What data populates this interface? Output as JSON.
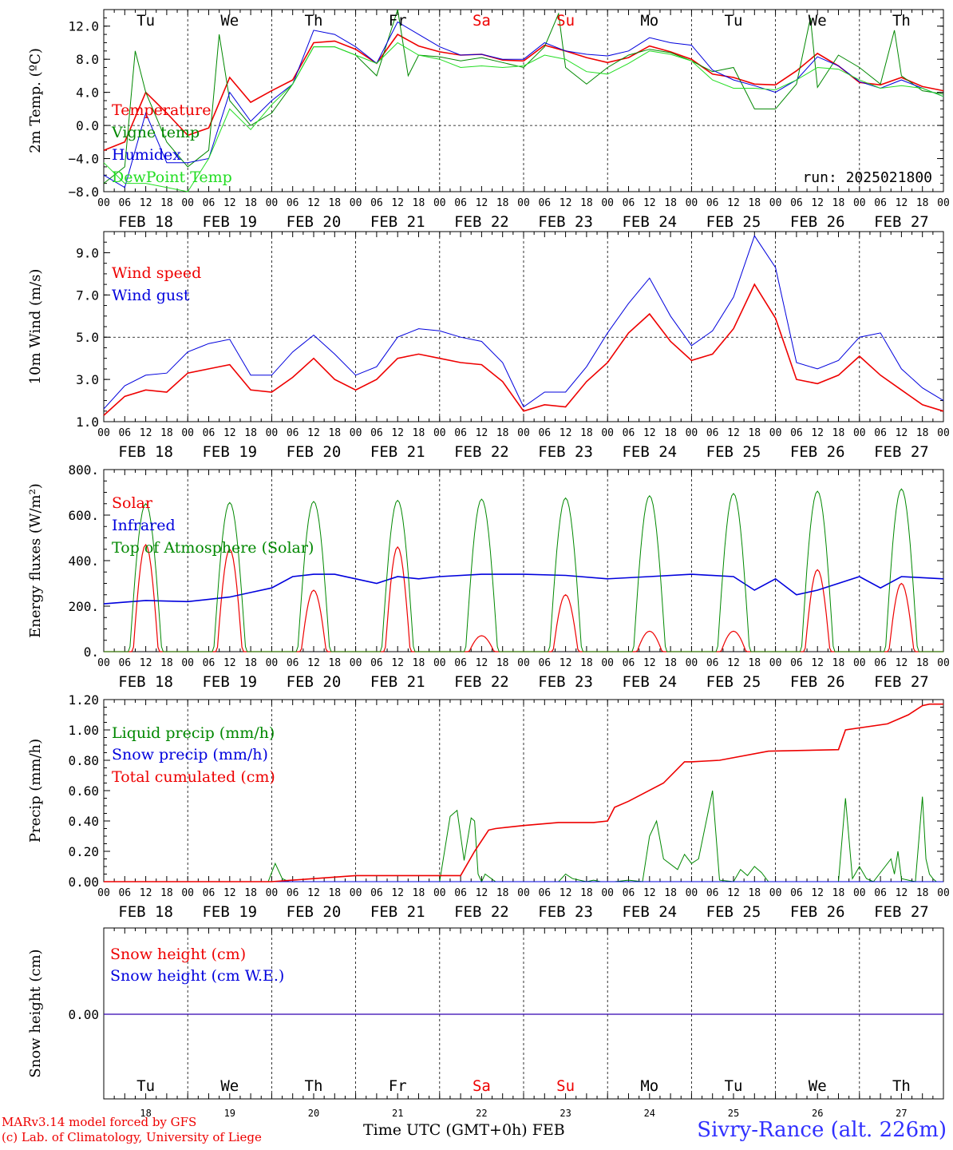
{
  "meta": {
    "run_label": "run: 2025021800",
    "station": "Sivry-Rance (alt. 226m)",
    "credit_line1": "MARv3.14 model forced by GFS",
    "credit_line2": "(c) Lab. of Climatology, University of Liege",
    "time_axis_label": "Time UTC (GMT+0h) FEB"
  },
  "days": {
    "dates": [
      "FEB 18",
      "FEB 19",
      "FEB 20",
      "FEB 21",
      "FEB 22",
      "FEB 23",
      "FEB 24",
      "FEB 25",
      "FEB 26",
      "FEB 27"
    ],
    "weekdays": [
      "Tu",
      "We",
      "Th",
      "Fr",
      "Sa",
      "Su",
      "Mo",
      "Tu",
      "We",
      "Th"
    ],
    "weekday_colors": [
      "#000000",
      "#000000",
      "#000000",
      "#000000",
      "#ee0000",
      "#ee0000",
      "#000000",
      "#000000",
      "#000000",
      "#000000"
    ],
    "day_numbers": [
      "18",
      "19",
      "20",
      "21",
      "22",
      "23",
      "24",
      "25",
      "26",
      "27"
    ],
    "hour_labels": [
      "00",
      "06",
      "12",
      "18"
    ],
    "final_hour_label": "00"
  },
  "chart_data": [
    {
      "type": "line",
      "ylabel": "2m Temp. (ºC)",
      "ylim": [
        -8,
        14
      ],
      "yticks": [
        -8,
        -4,
        0,
        4,
        8,
        12
      ],
      "ytick_labels": [
        "−8.0",
        "−4.0",
        "0.0",
        "4.0",
        "8.0",
        "12.0"
      ],
      "x_unit": "hours since FEB 18 00 UTC",
      "dashed_y": 0,
      "legend": "top-left",
      "series": [
        {
          "name": "Temperature",
          "color": "#ee0000",
          "width": 1.6,
          "x": [
            0,
            6,
            12,
            18,
            24,
            30,
            36,
            42,
            48,
            54,
            60,
            66,
            72,
            78,
            84,
            90,
            96,
            102,
            108,
            114,
            120,
            126,
            132,
            138,
            144,
            150,
            156,
            162,
            168,
            174,
            180,
            186,
            192,
            198,
            204,
            210,
            216,
            222,
            228,
            234,
            240
          ],
          "y": [
            -3,
            -2,
            4,
            1.5,
            -1.2,
            -0.3,
            5.8,
            2.8,
            4.2,
            5.5,
            10,
            10.2,
            9.2,
            7.5,
            11,
            9.6,
            8.9,
            8.5,
            8.6,
            7.9,
            7.8,
            9.7,
            9,
            8.2,
            7.6,
            8.2,
            9.6,
            8.9,
            8,
            6.2,
            5.8,
            5,
            4.9,
            6.6,
            8.7,
            7.2,
            5.2,
            4.9,
            5.8,
            4.7,
            4.2
          ]
        },
        {
          "name": "Vigne temp",
          "color": "#008800",
          "width": 1,
          "x": [
            0,
            6,
            9,
            12,
            18,
            24,
            30,
            33,
            36,
            42,
            48,
            54,
            60,
            66,
            72,
            78,
            84,
            87,
            90,
            96,
            102,
            108,
            114,
            120,
            126,
            130,
            132,
            138,
            144,
            150,
            156,
            162,
            168,
            174,
            180,
            186,
            192,
            198,
            202,
            204,
            210,
            216,
            222,
            226,
            228,
            234,
            240
          ],
          "y": [
            -7,
            -5,
            9,
            4,
            -2,
            -5,
            -3,
            11,
            3,
            0,
            1.5,
            5,
            9.5,
            9.5,
            8.5,
            6,
            14,
            6,
            8.5,
            8.3,
            7.8,
            8.2,
            7.6,
            7,
            9.5,
            13.5,
            7,
            5,
            7,
            8.5,
            9.2,
            8.8,
            7.8,
            6.5,
            7,
            2,
            2,
            5,
            13,
            4.6,
            8.5,
            7,
            5,
            11.5,
            6,
            4.2,
            3.8
          ]
        },
        {
          "name": "Humidex",
          "color": "#0000dd",
          "width": 1,
          "x": [
            0,
            6,
            12,
            18,
            24,
            30,
            36,
            42,
            48,
            54,
            60,
            66,
            72,
            78,
            84,
            90,
            96,
            102,
            108,
            114,
            120,
            126,
            132,
            138,
            144,
            150,
            156,
            162,
            168,
            174,
            180,
            186,
            192,
            198,
            204,
            210,
            216,
            222,
            228,
            234,
            240
          ],
          "y": [
            -6,
            -7.5,
            1.5,
            -4.5,
            -4.5,
            -4,
            4,
            0.5,
            3,
            5,
            11.5,
            11,
            9.5,
            7.5,
            12.5,
            11,
            9.5,
            8.5,
            8.6,
            8,
            8,
            10,
            9,
            8.6,
            8.4,
            9,
            10.6,
            10,
            9.7,
            6.7,
            5.5,
            4.8,
            4,
            5.5,
            8.3,
            7.2,
            5.3,
            4.5,
            5.5,
            4.5,
            3.5
          ]
        },
        {
          "name": "DewPoint Temp",
          "color": "#22dd22",
          "width": 1,
          "x": [
            0,
            6,
            12,
            18,
            24,
            30,
            36,
            42,
            48,
            54,
            60,
            66,
            72,
            78,
            84,
            90,
            96,
            102,
            108,
            114,
            120,
            126,
            132,
            138,
            144,
            150,
            156,
            162,
            168,
            174,
            180,
            186,
            192,
            198,
            204,
            210,
            216,
            222,
            228,
            234,
            240
          ],
          "y": [
            -4.5,
            -7,
            -7,
            -7.5,
            -8,
            -4,
            2,
            -0.5,
            2.5,
            5,
            9.5,
            9.5,
            8.5,
            7.5,
            10,
            8.5,
            8,
            7,
            7.2,
            7,
            7.2,
            8.5,
            8,
            6.5,
            6.2,
            7.5,
            9,
            8.6,
            7.8,
            5.5,
            4.5,
            4.5,
            4.3,
            5.5,
            7,
            6.8,
            5.5,
            4.5,
            4.8,
            4.5,
            3.5
          ]
        }
      ]
    },
    {
      "type": "line",
      "ylabel": "10m Wind (m/s)",
      "ylim": [
        1,
        10
      ],
      "yticks": [
        1,
        3,
        5,
        7,
        9
      ],
      "ytick_labels": [
        "1.0",
        "3.0",
        "5.0",
        "7.0",
        "9.0"
      ],
      "x_unit": "hours since FEB 18 00 UTC",
      "dashed_y": 5,
      "legend": "top-left",
      "series": [
        {
          "name": "Wind speed",
          "color": "#ee0000",
          "width": 1.6,
          "x": [
            0,
            6,
            12,
            18,
            24,
            30,
            36,
            42,
            48,
            54,
            60,
            66,
            72,
            78,
            84,
            90,
            96,
            102,
            108,
            114,
            120,
            126,
            132,
            138,
            144,
            150,
            156,
            162,
            168,
            174,
            180,
            186,
            192,
            198,
            204,
            210,
            216,
            222,
            228,
            234,
            240
          ],
          "y": [
            1.3,
            2.2,
            2.5,
            2.4,
            3.3,
            3.5,
            3.7,
            2.5,
            2.4,
            3.1,
            4,
            3,
            2.5,
            3,
            4,
            4.2,
            4,
            3.8,
            3.7,
            2.9,
            1.5,
            1.8,
            1.7,
            2.9,
            3.8,
            5.2,
            6.1,
            4.8,
            3.9,
            4.2,
            5.4,
            7.5,
            5.9,
            3,
            2.8,
            3.2,
            4.1,
            3.2,
            2.5,
            1.8,
            1.5
          ]
        },
        {
          "name": "Wind gust",
          "color": "#0000dd",
          "width": 1,
          "x": [
            0,
            6,
            12,
            18,
            24,
            30,
            36,
            42,
            48,
            54,
            60,
            66,
            72,
            78,
            84,
            90,
            96,
            102,
            108,
            114,
            120,
            126,
            132,
            138,
            144,
            150,
            156,
            162,
            168,
            174,
            180,
            186,
            192,
            198,
            204,
            210,
            216,
            222,
            228,
            234,
            240
          ],
          "y": [
            1.6,
            2.7,
            3.2,
            3.3,
            4.3,
            4.7,
            4.9,
            3.2,
            3.2,
            4.3,
            5.1,
            4.2,
            3.2,
            3.6,
            5,
            5.4,
            5.3,
            5,
            4.8,
            3.8,
            1.7,
            2.4,
            2.4,
            3.6,
            5.2,
            6.6,
            7.8,
            6,
            4.6,
            5.3,
            6.9,
            9.8,
            8.3,
            3.8,
            3.5,
            3.9,
            5,
            5.2,
            3.5,
            2.6,
            2
          ]
        }
      ]
    },
    {
      "type": "line",
      "ylabel": "Energy fluxes (W/m²)",
      "ylim": [
        0,
        800
      ],
      "yticks": [
        0,
        200,
        400,
        600,
        800
      ],
      "ytick_labels": [
        "0.",
        "200.",
        "400.",
        "600.",
        "800."
      ],
      "x_unit": "hours since FEB 18 00 UTC",
      "legend": "top-left",
      "series": [
        {
          "name": "Solar",
          "color": "#ee0000",
          "width": 1.2,
          "day_peaks": [
            470,
            450,
            270,
            460,
            70,
            250,
            90,
            90,
            360,
            300
          ]
        },
        {
          "name": "Infrared",
          "color": "#0000dd",
          "width": 1.6,
          "x": [
            0,
            12,
            24,
            36,
            42,
            48,
            54,
            60,
            66,
            72,
            78,
            84,
            90,
            96,
            108,
            120,
            132,
            144,
            156,
            168,
            180,
            186,
            192,
            198,
            204,
            216,
            222,
            228,
            240
          ],
          "y": [
            210,
            225,
            220,
            240,
            260,
            280,
            330,
            340,
            340,
            320,
            300,
            330,
            320,
            330,
            340,
            340,
            335,
            320,
            330,
            340,
            330,
            270,
            320,
            250,
            270,
            330,
            280,
            330,
            320
          ]
        },
        {
          "name": "Top of Atmosphere (Solar)",
          "color": "#008800",
          "width": 1,
          "day_peaks": [
            650,
            655,
            660,
            665,
            670,
            675,
            685,
            695,
            705,
            715
          ]
        }
      ]
    },
    {
      "type": "line",
      "ylabel": "Precip (mm/h)",
      "ylim": [
        0,
        1.2
      ],
      "yticks": [
        0,
        0.2,
        0.4,
        0.6,
        0.8,
        1.0,
        1.2
      ],
      "ytick_labels": [
        "0.00",
        "0.20",
        "0.40",
        "0.60",
        "0.80",
        "1.00",
        "1.20"
      ],
      "x_unit": "hours since FEB 18 00 UTC",
      "legend": "top-left",
      "series": [
        {
          "name": "Liquid precip (mm/h)",
          "color": "#008800",
          "width": 1,
          "x": [
            0,
            47,
            49,
            51,
            53,
            96,
            99,
            101,
            103,
            105,
            106,
            107,
            108,
            109,
            112,
            130,
            132,
            134,
            136,
            138,
            140,
            142,
            146,
            150,
            154,
            156,
            158,
            160,
            164,
            166,
            168,
            170,
            174,
            176,
            180,
            182,
            184,
            186,
            188,
            190,
            210,
            212,
            214,
            216,
            218,
            220,
            225,
            226,
            227,
            228,
            232,
            234,
            235,
            236,
            237,
            238,
            240
          ],
          "y": [
            0,
            0,
            0.12,
            0.02,
            0,
            0,
            0.43,
            0.47,
            0.14,
            0.42,
            0.4,
            0.05,
            0,
            0.05,
            0,
            0,
            0.05,
            0.02,
            0.01,
            0,
            0.01,
            0,
            0,
            0.01,
            0,
            0.3,
            0.4,
            0.15,
            0.08,
            0.18,
            0.12,
            0.15,
            0.6,
            0.01,
            0,
            0.08,
            0.04,
            0.1,
            0.06,
            0,
            0,
            0.55,
            0.02,
            0.1,
            0.02,
            0,
            0.15,
            0.05,
            0.2,
            0.02,
            0,
            0.56,
            0.15,
            0.05,
            0.02,
            0,
            0
          ]
        },
        {
          "name": "Snow precip (mm/h)",
          "color": "#0000dd",
          "width": 1,
          "x": [
            0,
            240
          ],
          "y": [
            0,
            0
          ]
        },
        {
          "name": "Total cumulated (cm)",
          "color": "#ee0000",
          "width": 1.6,
          "x": [
            0,
            48,
            54,
            60,
            72,
            102,
            106,
            110,
            112,
            120,
            130,
            140,
            144,
            146,
            150,
            160,
            166,
            168,
            176,
            190,
            210,
            212,
            224,
            230,
            234,
            236,
            240
          ],
          "y": [
            0,
            0,
            0.01,
            0.02,
            0.04,
            0.04,
            0.2,
            0.34,
            0.35,
            0.37,
            0.39,
            0.39,
            0.4,
            0.49,
            0.53,
            0.65,
            0.79,
            0.79,
            0.8,
            0.86,
            0.87,
            1.0,
            1.04,
            1.1,
            1.16,
            1.17,
            1.17
          ]
        }
      ]
    },
    {
      "type": "line",
      "ylabel": "Snow height (cm)",
      "yticks": [
        0
      ],
      "ytick_labels": [
        "0.00"
      ],
      "x_unit": "hours since FEB 18 00 UTC",
      "legend": "top-left",
      "series": [
        {
          "name": "Snow height (cm)",
          "color": "#ee0000",
          "width": 1.2,
          "x": [
            0,
            240
          ],
          "y": [
            0,
            0
          ]
        },
        {
          "name": "Snow height (cm W.E.)",
          "color": "#0000dd",
          "width": 1,
          "x": [
            0,
            240
          ],
          "y": [
            0,
            0
          ]
        }
      ]
    }
  ]
}
